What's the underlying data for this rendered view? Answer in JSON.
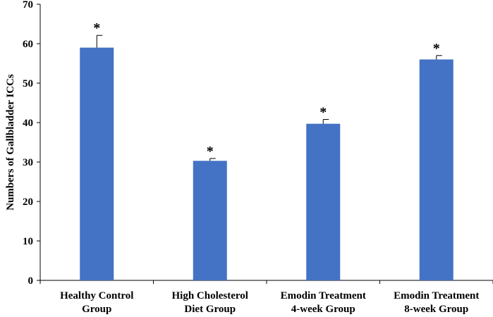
{
  "chart_data": {
    "type": "bar",
    "title": "",
    "xlabel": "",
    "ylabel": "Numbers of Gallbladder ICCs",
    "ylim": [
      0,
      70
    ],
    "yticks": [
      0,
      10,
      20,
      30,
      40,
      50,
      60,
      70
    ],
    "categories": [
      [
        "Healthy Control",
        "Group"
      ],
      [
        "High Cholesterol",
        "Diet Group"
      ],
      [
        "Emodin Treatment",
        "4-week Group"
      ],
      [
        "Emodin Treatment",
        "8-week Group"
      ]
    ],
    "values": [
      59,
      30.3,
      39.7,
      56
    ],
    "errors": [
      3.1,
      0.6,
      1.1,
      1.0
    ],
    "significance": [
      "*",
      "*",
      "*",
      "*"
    ],
    "bar_color": "#4472C4",
    "grid": false,
    "legend": "none"
  }
}
